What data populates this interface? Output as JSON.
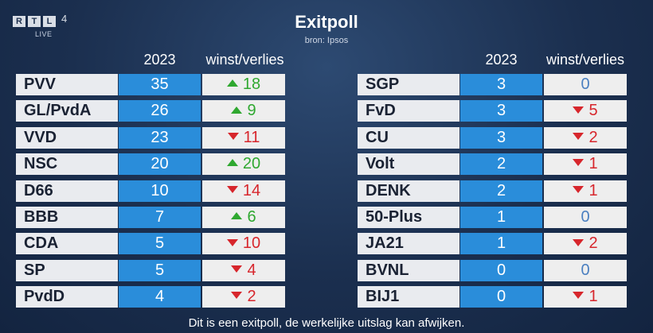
{
  "broadcaster": {
    "logo_letters": [
      "R",
      "T",
      "L"
    ],
    "channel": "4",
    "live_label": "LIVE"
  },
  "title": "Exitpoll",
  "subtitle": "bron: Ipsos",
  "headers": {
    "year": "2023",
    "change": "winst/verlies"
  },
  "colors": {
    "seats_bg": "#2a8dda",
    "gain": "#2fa830",
    "loss": "#d7262c",
    "neutral": "#4a7fc0"
  },
  "left_table": [
    {
      "party": "PVV",
      "seats": "35",
      "direction": "up",
      "change": "18"
    },
    {
      "party": "GL/PvdA",
      "seats": "26",
      "direction": "up",
      "change": "9"
    },
    {
      "party": "VVD",
      "seats": "23",
      "direction": "down",
      "change": "11"
    },
    {
      "party": "NSC",
      "seats": "20",
      "direction": "up",
      "change": "20"
    },
    {
      "party": "D66",
      "seats": "10",
      "direction": "down",
      "change": "14"
    },
    {
      "party": "BBB",
      "seats": "7",
      "direction": "up",
      "change": "6"
    },
    {
      "party": "CDA",
      "seats": "5",
      "direction": "down",
      "change": "10"
    },
    {
      "party": "SP",
      "seats": "5",
      "direction": "down",
      "change": "4"
    },
    {
      "party": "PvdD",
      "seats": "4",
      "direction": "down",
      "change": "2"
    }
  ],
  "right_table": [
    {
      "party": "SGP",
      "seats": "3",
      "direction": "none",
      "change": "0"
    },
    {
      "party": "FvD",
      "seats": "3",
      "direction": "down",
      "change": "5"
    },
    {
      "party": "CU",
      "seats": "3",
      "direction": "down",
      "change": "2"
    },
    {
      "party": "Volt",
      "seats": "2",
      "direction": "down",
      "change": "1"
    },
    {
      "party": "DENK",
      "seats": "2",
      "direction": "down",
      "change": "1"
    },
    {
      "party": "50-Plus",
      "seats": "1",
      "direction": "none",
      "change": "0"
    },
    {
      "party": "JA21",
      "seats": "1",
      "direction": "down",
      "change": "2"
    },
    {
      "party": "BVNL",
      "seats": "0",
      "direction": "none",
      "change": "0"
    },
    {
      "party": "BIJ1",
      "seats": "0",
      "direction": "down",
      "change": "1"
    }
  ],
  "footer": "Dit is een exitpoll, de werkelijke uitslag kan afwijken."
}
